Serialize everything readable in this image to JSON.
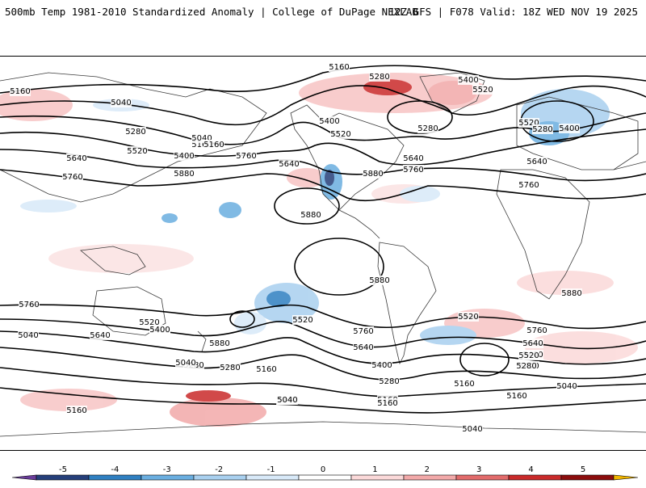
{
  "header": {
    "title": "500mb Temp 1981-2010 Standardized Anomaly | College of DuPage NEXLAB",
    "run_info": "12Z GFS | F078 Valid: 18Z WED NOV 19 2025"
  },
  "legend": {
    "ticks": [
      "-5",
      "-4",
      "-3",
      "-2",
      "-1",
      "0",
      "1",
      "2",
      "3",
      "4",
      "5"
    ],
    "colors": [
      "#6a3d9a",
      "#253f7a",
      "#2f7fc1",
      "#6aaee0",
      "#a9d0ef",
      "#d8e9f8",
      "#ffffff",
      "#fbd9d9",
      "#f2a9a9",
      "#e26b6b",
      "#c92a2a",
      "#8b0d0d",
      "#f0b400"
    ]
  },
  "contour_labels": [
    "5160",
    "5280",
    "5400",
    "5520",
    "5160",
    "5040",
    "5160",
    "5280",
    "5520",
    "5640",
    "5760",
    "5040",
    "5160",
    "5400",
    "5760",
    "5880",
    "5640",
    "5400",
    "5520",
    "5280",
    "5640",
    "5760",
    "5880",
    "5880",
    "5880",
    "5400",
    "5520",
    "5280",
    "5640",
    "5760",
    "5880",
    "5760",
    "5640",
    "5520",
    "5400",
    "5280",
    "5160",
    "5040",
    "5040",
    "5160",
    "5280",
    "5400",
    "5520",
    "5640",
    "5760",
    "5880",
    "5520",
    "5400",
    "5760",
    "5640",
    "5520",
    "5400",
    "5280",
    "5160",
    "5040",
    "5160",
    "5280",
    "5400",
    "5040",
    "5160",
    "5040",
    "5040",
    "5160"
  ],
  "colors": {
    "frame": "#000000",
    "contour": "#000000",
    "coast": "#3a3a3a"
  }
}
